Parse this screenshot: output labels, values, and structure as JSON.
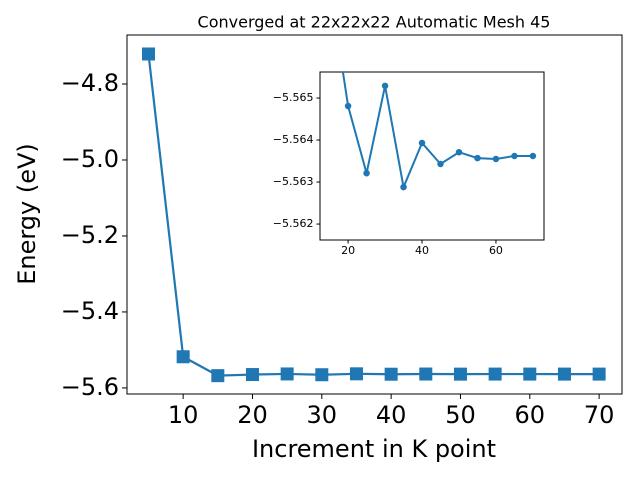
{
  "chart_data": [
    {
      "type": "line",
      "title": "Converged at 22x22x22 Automatic Mesh 45",
      "xlabel": "Increment in K point",
      "ylabel": "Energy (eV)",
      "x": [
        5,
        10,
        15,
        20,
        25,
        30,
        35,
        40,
        45,
        50,
        55,
        60,
        65,
        70
      ],
      "series": [
        {
          "color": "#1f77b4",
          "marker": "square",
          "values": [
            -4.721,
            -5.518,
            -5.5677,
            -5.56481,
            -5.56321,
            -5.56529,
            -5.56288,
            -5.56393,
            -5.56343,
            -5.56371,
            -5.56357,
            -5.56355,
            -5.56362,
            -5.56362
          ]
        }
      ],
      "xlim": [
        1.9,
        73.3
      ],
      "ylim": [
        -5.616,
        -4.671
      ],
      "xticks": [
        10,
        20,
        30,
        40,
        50,
        60,
        70
      ],
      "yticks": [
        {
          "value": -4.8,
          "label": "−4.8"
        },
        {
          "value": -5.0,
          "label": "−5.0"
        },
        {
          "value": -5.2,
          "label": "−5.2"
        },
        {
          "value": -5.4,
          "label": "−5.4"
        },
        {
          "value": -5.6,
          "label": "−5.6"
        }
      ]
    },
    {
      "type": "line",
      "x": [
        15,
        20,
        25,
        30,
        35,
        40,
        45,
        50,
        55,
        60,
        65,
        70
      ],
      "series": [
        {
          "color": "#1f77b4",
          "marker": "circle",
          "values": [
            -5.5677,
            -5.56481,
            -5.56321,
            -5.56529,
            -5.56288,
            -5.56393,
            -5.56343,
            -5.56371,
            -5.56357,
            -5.56355,
            -5.56362,
            -5.56362
          ]
        }
      ],
      "xlim": [
        12.4,
        73.0
      ],
      "ylim": [
        -5.56162,
        -5.56562
      ],
      "y_inverted": true,
      "xticks": [
        20,
        40,
        60
      ],
      "yticks": [
        {
          "value": -5.565,
          "label": "−5.565"
        },
        {
          "value": -5.564,
          "label": "−5.564"
        },
        {
          "value": -5.563,
          "label": "−5.563"
        },
        {
          "value": -5.562,
          "label": "−5.562"
        }
      ]
    }
  ]
}
